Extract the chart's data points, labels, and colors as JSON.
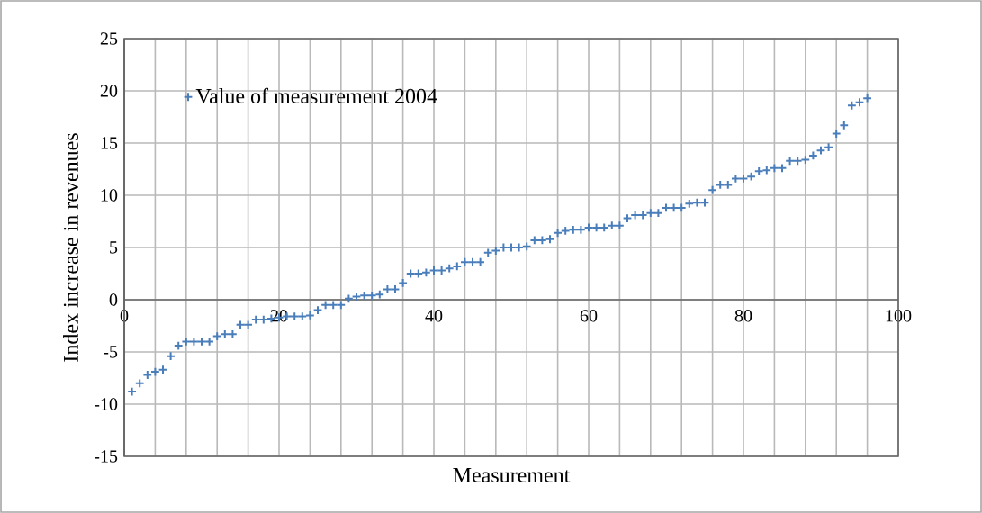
{
  "chart_data": {
    "type": "scatter",
    "xlabel": "Measurement",
    "ylabel": "Index increase in revenues",
    "x": [
      1,
      2,
      3,
      4,
      5,
      6,
      7,
      8,
      9,
      10,
      11,
      12,
      13,
      14,
      15,
      16,
      17,
      18,
      19,
      20,
      21,
      22,
      23,
      24,
      25,
      26,
      27,
      28,
      29,
      30,
      31,
      32,
      33,
      34,
      35,
      36,
      37,
      38,
      39,
      40,
      41,
      42,
      43,
      44,
      45,
      46,
      47,
      48,
      49,
      50,
      51,
      52,
      53,
      54,
      55,
      56,
      57,
      58,
      59,
      60,
      61,
      62,
      63,
      64,
      65,
      66,
      67,
      68,
      69,
      70,
      71,
      72,
      73,
      74,
      75,
      76,
      77,
      78,
      79,
      80,
      81,
      82,
      83,
      84,
      85,
      86,
      87,
      88,
      89,
      90,
      91,
      92,
      93,
      94,
      95,
      96
    ],
    "series": [
      {
        "name": "Value of measurement 2004",
        "color": "#4a7ebb",
        "values": [
          -8.8,
          -8.0,
          -7.2,
          -6.9,
          -6.7,
          -5.4,
          -4.4,
          -4.0,
          -4.0,
          -4.0,
          -4.0,
          -3.5,
          -3.3,
          -3.3,
          -2.4,
          -2.4,
          -1.9,
          -1.9,
          -1.8,
          -1.7,
          -1.6,
          -1.6,
          -1.6,
          -1.5,
          -1.0,
          -0.5,
          -0.5,
          -0.5,
          0.1,
          0.3,
          0.4,
          0.4,
          0.5,
          1.0,
          1.0,
          1.6,
          2.5,
          2.5,
          2.6,
          2.8,
          2.8,
          3.0,
          3.2,
          3.6,
          3.6,
          3.6,
          4.5,
          4.7,
          5.0,
          5.0,
          5.0,
          5.1,
          5.7,
          5.7,
          5.8,
          6.4,
          6.6,
          6.7,
          6.7,
          6.9,
          6.9,
          6.9,
          7.1,
          7.1,
          7.8,
          8.1,
          8.1,
          8.3,
          8.3,
          8.8,
          8.8,
          8.8,
          9.2,
          9.3,
          9.3,
          10.5,
          11.0,
          11.0,
          11.6,
          11.6,
          11.8,
          12.3,
          12.4,
          12.6,
          12.6,
          13.3,
          13.3,
          13.4,
          13.8,
          14.3,
          14.6,
          15.9,
          16.7,
          18.6,
          18.9,
          19.3
        ]
      }
    ],
    "xlim": [
      0,
      100
    ],
    "xticks": [
      0,
      {
        "value": 4,
        "label": null
      },
      {
        "value": 8,
        "label": null
      },
      {
        "value": 12,
        "label": null
      },
      {
        "value": 16,
        "label": null
      },
      20,
      {
        "value": 24,
        "label": null
      },
      {
        "value": 28,
        "label": null
      },
      {
        "value": 32,
        "label": null
      },
      {
        "value": 36,
        "label": null
      },
      40,
      {
        "value": 44,
        "label": null
      },
      {
        "value": 48,
        "label": null
      },
      {
        "value": 52,
        "label": null
      },
      {
        "value": 56,
        "label": null
      },
      60,
      {
        "value": 64,
        "label": null
      },
      {
        "value": 68,
        "label": null
      },
      {
        "value": 72,
        "label": null
      },
      {
        "value": 76,
        "label": null
      },
      80,
      {
        "value": 84,
        "label": null
      },
      {
        "value": 88,
        "label": null
      },
      {
        "value": 92,
        "label": null
      },
      {
        "value": 96,
        "label": null
      },
      100
    ],
    "ylim": [
      -15,
      25
    ],
    "yticks": [
      -15,
      -10,
      -5,
      0,
      5,
      10,
      15,
      20,
      25
    ],
    "grid": true,
    "legend": "top left",
    "marker": "cross"
  }
}
